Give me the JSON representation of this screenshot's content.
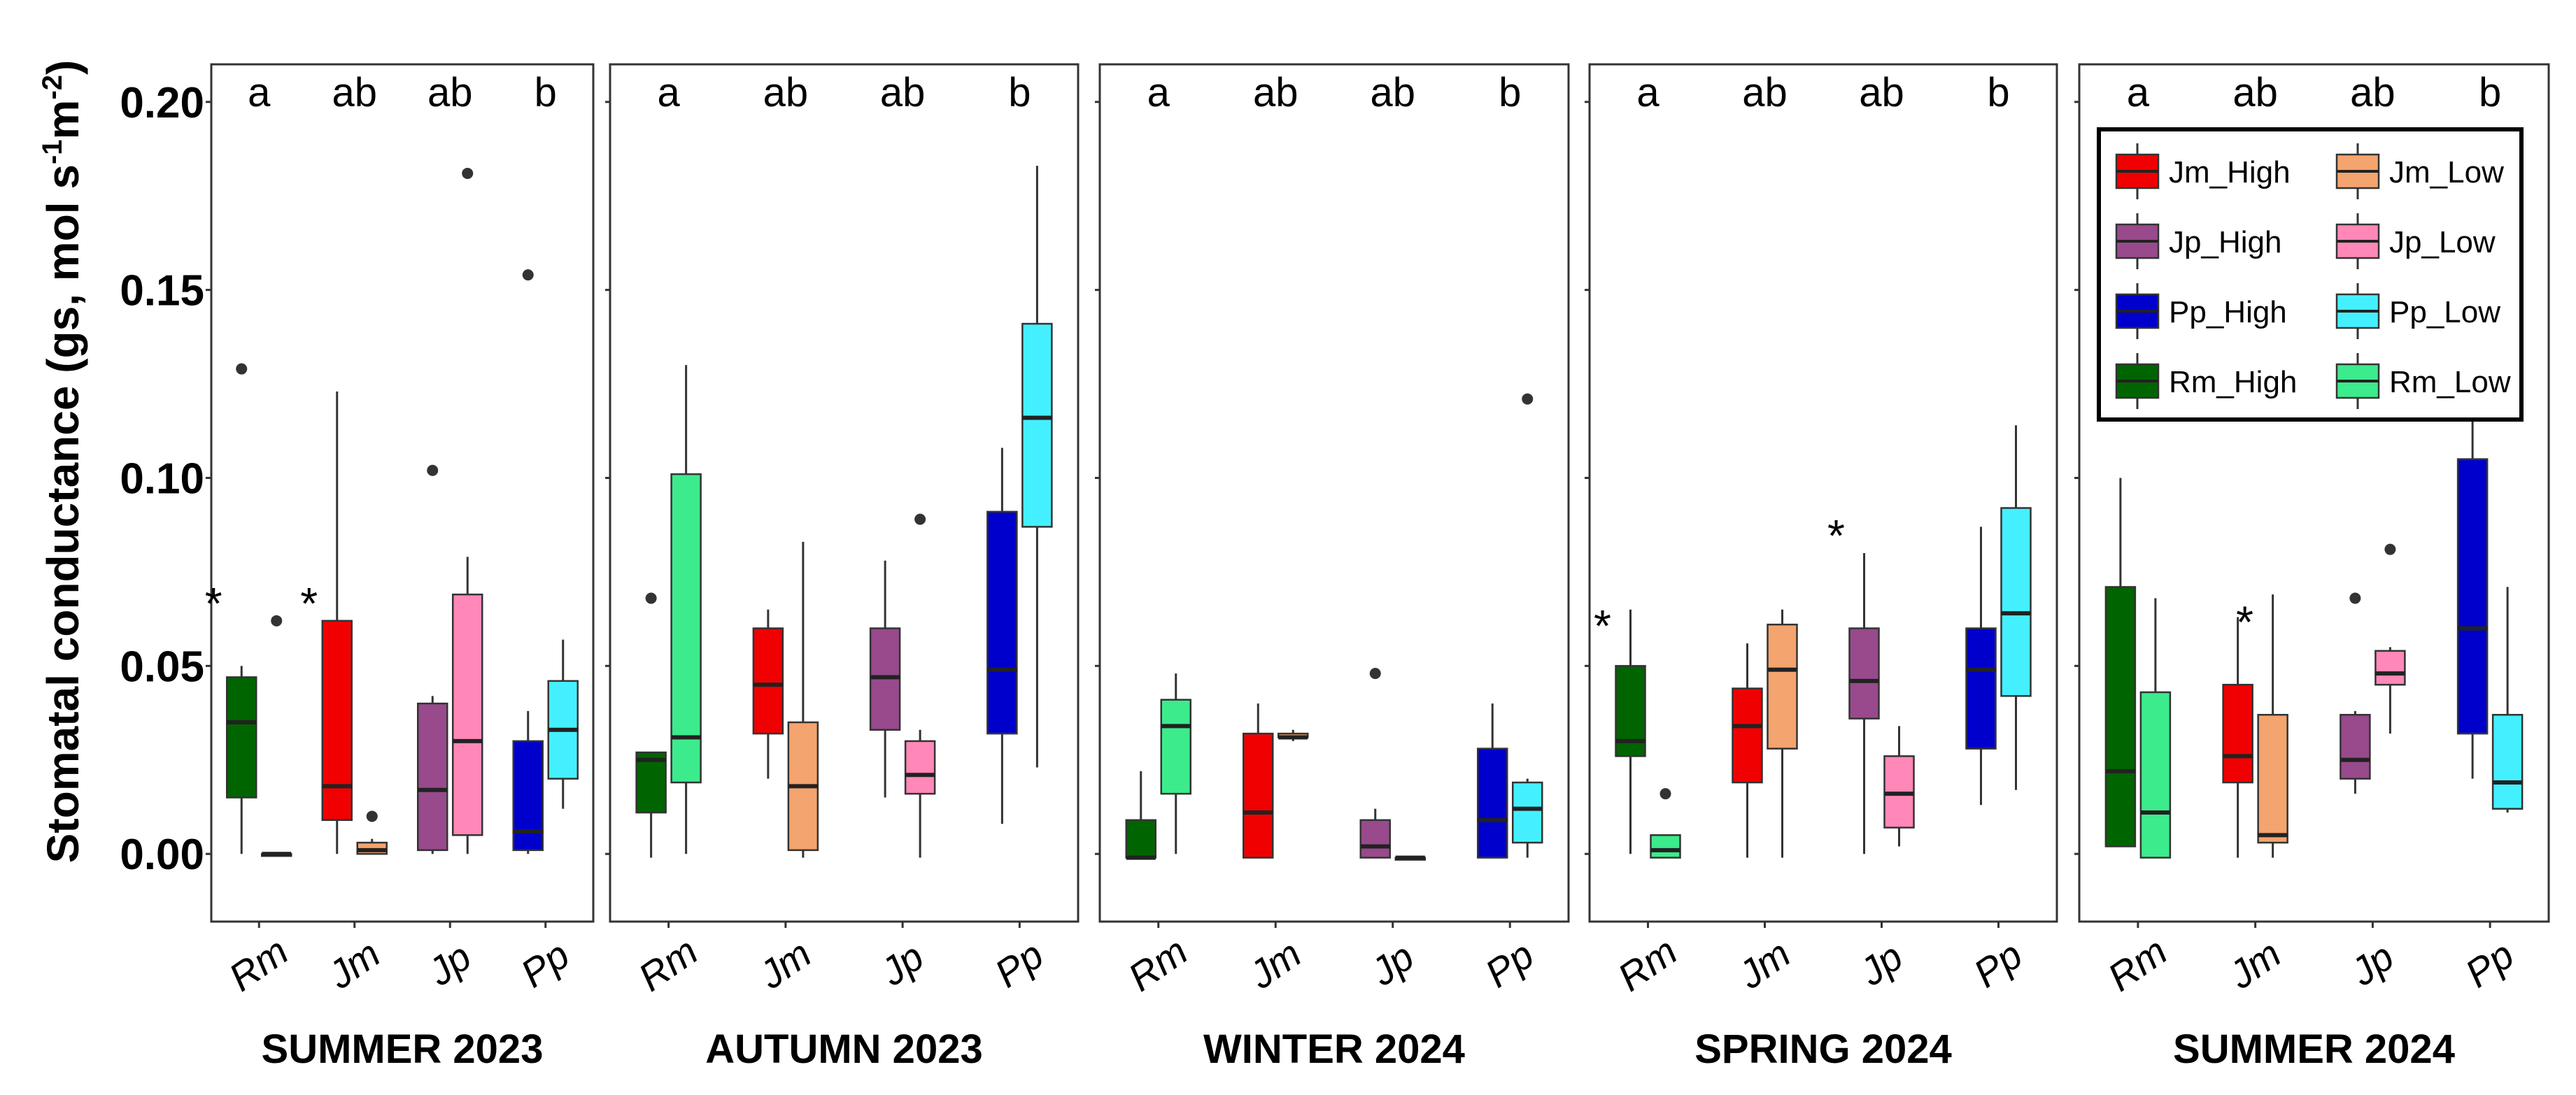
{
  "chart_data": {
    "type": "box",
    "y_axis": {
      "label": "Stomatal conductance (gs, mol s",
      "label_sup1": "-1",
      "label_mid": "m",
      "label_sup2": "-2",
      "label_end": ")",
      "ylim": [
        -0.018,
        0.21
      ],
      "ticks": [
        "0.00",
        "0.05",
        "0.10",
        "0.15",
        "0.20"
      ],
      "tick_values": [
        0,
        0.05,
        0.1,
        0.15,
        0.2
      ]
    },
    "groups": [
      "Rm",
      "Jm",
      "Jp",
      "Pp"
    ],
    "colors": {
      "Rm_High": "#006400",
      "Rm_Low": "#3CEB8C",
      "Jm_High": "#F00000",
      "Jm_Low": "#F4A46E",
      "Jp_High": "#984A8C",
      "Jp_Low": "#FF88B8",
      "Pp_High": "#0000CD",
      "Pp_Low": "#44F0FF"
    },
    "legend": [
      {
        "key": "Jm_High",
        "label": "Jm_High"
      },
      {
        "key": "Jm_Low",
        "label": "Jm_Low"
      },
      {
        "key": "Jp_High",
        "label": "Jp_High"
      },
      {
        "key": "Jp_Low",
        "label": "Jp_Low"
      },
      {
        "key": "Pp_High",
        "label": "Pp_High"
      },
      {
        "key": "Pp_Low",
        "label": "Pp_Low"
      },
      {
        "key": "Rm_High",
        "label": "Rm_High"
      },
      {
        "key": "Rm_Low",
        "label": "Rm_Low"
      }
    ],
    "panels": [
      {
        "season": "SUMMER 2023",
        "letters": [
          "a",
          "ab",
          "ab",
          "b"
        ],
        "boxes": [
          {
            "key": "Rm_High",
            "min": 0.0,
            "q1": 0.015,
            "med": 0.035,
            "q3": 0.047,
            "max": 0.05,
            "out": [
              0.129
            ]
          },
          {
            "key": "Rm_Low",
            "min": 0.0,
            "q1": 0.0,
            "med": 0.0,
            "q3": 0.0,
            "max": 0.0,
            "out": [
              0.062
            ]
          },
          {
            "key": "Jm_High",
            "min": 0.0,
            "q1": 0.009,
            "med": 0.018,
            "q3": 0.062,
            "max": 0.123,
            "out": []
          },
          {
            "key": "Jm_Low",
            "min": 0.0,
            "q1": 0.0,
            "med": 0.001,
            "q3": 0.003,
            "max": 0.004,
            "out": [
              0.01
            ]
          },
          {
            "key": "Jp_High",
            "min": 0.0,
            "q1": 0.001,
            "med": 0.017,
            "q3": 0.04,
            "max": 0.042,
            "out": [
              0.102
            ]
          },
          {
            "key": "Jp_Low",
            "min": 0.0,
            "q1": 0.005,
            "med": 0.03,
            "q3": 0.069,
            "max": 0.079,
            "out": [
              0.181
            ]
          },
          {
            "key": "Pp_High",
            "min": 0.0,
            "q1": 0.001,
            "med": 0.006,
            "q3": 0.03,
            "max": 0.038,
            "out": [
              0.154
            ]
          },
          {
            "key": "Pp_Low",
            "min": 0.012,
            "q1": 0.02,
            "med": 0.033,
            "q3": 0.046,
            "max": 0.057,
            "out": []
          }
        ],
        "asterisks": [
          {
            "box": 0,
            "value": 0.07
          },
          {
            "box": 2,
            "value": 0.07
          }
        ]
      },
      {
        "season": "AUTUMN 2023",
        "letters": [
          "a",
          "ab",
          "ab",
          "b"
        ],
        "boxes": [
          {
            "key": "Rm_High",
            "min": -0.001,
            "q1": 0.011,
            "med": 0.025,
            "q3": 0.027,
            "max": 0.027,
            "out": [
              0.068
            ]
          },
          {
            "key": "Rm_Low",
            "min": 0.0,
            "q1": 0.019,
            "med": 0.031,
            "q3": 0.101,
            "max": 0.13,
            "out": []
          },
          {
            "key": "Jm_High",
            "min": 0.02,
            "q1": 0.032,
            "med": 0.045,
            "q3": 0.06,
            "max": 0.065,
            "out": []
          },
          {
            "key": "Jm_Low",
            "min": -0.001,
            "q1": 0.001,
            "med": 0.018,
            "q3": 0.035,
            "max": 0.083,
            "out": []
          },
          {
            "key": "Jp_High",
            "min": 0.015,
            "q1": 0.033,
            "med": 0.047,
            "q3": 0.06,
            "max": 0.078,
            "out": []
          },
          {
            "key": "Jp_Low",
            "min": -0.001,
            "q1": 0.016,
            "med": 0.021,
            "q3": 0.03,
            "max": 0.033,
            "out": [
              0.089
            ]
          },
          {
            "key": "Pp_High",
            "min": 0.008,
            "q1": 0.032,
            "med": 0.049,
            "q3": 0.091,
            "max": 0.108,
            "out": []
          },
          {
            "key": "Pp_Low",
            "min": 0.023,
            "q1": 0.087,
            "med": 0.116,
            "q3": 0.141,
            "max": 0.183,
            "out": []
          }
        ],
        "asterisks": []
      },
      {
        "season": "WINTER 2024",
        "letters": [
          "a",
          "ab",
          "ab",
          "b"
        ],
        "boxes": [
          {
            "key": "Rm_High",
            "min": -0.001,
            "q1": -0.001,
            "med": -0.001,
            "q3": 0.009,
            "max": 0.022,
            "out": []
          },
          {
            "key": "Rm_Low",
            "min": 0.0,
            "q1": 0.016,
            "med": 0.034,
            "q3": 0.041,
            "max": 0.048,
            "out": []
          },
          {
            "key": "Jm_High",
            "min": -0.001,
            "q1": -0.001,
            "med": 0.011,
            "q3": 0.032,
            "max": 0.04,
            "out": []
          },
          {
            "key": "Jm_Low",
            "min": 0.03,
            "q1": 0.031,
            "med": 0.031,
            "q3": 0.032,
            "max": 0.033,
            "out": []
          },
          {
            "key": "Jp_High",
            "min": -0.001,
            "q1": -0.001,
            "med": 0.002,
            "q3": 0.009,
            "max": 0.012,
            "out": [
              0.048
            ]
          },
          {
            "key": "Jp_Low",
            "min": -0.001,
            "q1": -0.001,
            "med": -0.001,
            "q3": -0.001,
            "max": -0.001,
            "out": []
          },
          {
            "key": "Pp_High",
            "min": -0.001,
            "q1": -0.001,
            "med": 0.009,
            "q3": 0.028,
            "max": 0.04,
            "out": []
          },
          {
            "key": "Pp_Low",
            "min": -0.001,
            "q1": 0.003,
            "med": 0.012,
            "q3": 0.019,
            "max": 0.02,
            "out": [
              0.121
            ]
          }
        ],
        "asterisks": []
      },
      {
        "season": "SPRING 2024",
        "letters": [
          "a",
          "ab",
          "ab",
          "b"
        ],
        "boxes": [
          {
            "key": "Rm_High",
            "min": 0.0,
            "q1": 0.026,
            "med": 0.03,
            "q3": 0.05,
            "max": 0.065,
            "out": []
          },
          {
            "key": "Rm_Low",
            "min": -0.001,
            "q1": -0.001,
            "med": 0.001,
            "q3": 0.005,
            "max": 0.005,
            "out": [
              0.016
            ]
          },
          {
            "key": "Jm_High",
            "min": -0.001,
            "q1": 0.019,
            "med": 0.034,
            "q3": 0.044,
            "max": 0.056,
            "out": []
          },
          {
            "key": "Jm_Low",
            "min": -0.001,
            "q1": 0.028,
            "med": 0.049,
            "q3": 0.061,
            "max": 0.065,
            "out": []
          },
          {
            "key": "Jp_High",
            "min": 0.0,
            "q1": 0.036,
            "med": 0.046,
            "q3": 0.06,
            "max": 0.08,
            "out": []
          },
          {
            "key": "Jp_Low",
            "min": 0.002,
            "q1": 0.007,
            "med": 0.016,
            "q3": 0.026,
            "max": 0.034,
            "out": []
          },
          {
            "key": "Pp_High",
            "min": 0.013,
            "q1": 0.028,
            "med": 0.049,
            "q3": 0.06,
            "max": 0.087,
            "out": []
          },
          {
            "key": "Pp_Low",
            "min": 0.017,
            "q1": 0.042,
            "med": 0.064,
            "q3": 0.092,
            "max": 0.114,
            "out": []
          }
        ],
        "asterisks": [
          {
            "box": 0,
            "value": 0.064
          },
          {
            "box": 4,
            "value": 0.088
          }
        ]
      },
      {
        "season": "SUMMER 2024",
        "letters": [
          "a",
          "ab",
          "ab",
          "b"
        ],
        "boxes": [
          {
            "key": "Rm_High",
            "min": 0.002,
            "q1": 0.002,
            "med": 0.022,
            "q3": 0.071,
            "max": 0.1,
            "out": []
          },
          {
            "key": "Rm_Low",
            "min": -0.001,
            "q1": -0.001,
            "med": 0.011,
            "q3": 0.043,
            "max": 0.068,
            "out": []
          },
          {
            "key": "Jm_High",
            "min": -0.001,
            "q1": 0.019,
            "med": 0.026,
            "q3": 0.045,
            "max": 0.063,
            "out": []
          },
          {
            "key": "Jm_Low",
            "min": -0.001,
            "q1": 0.003,
            "med": 0.005,
            "q3": 0.037,
            "max": 0.069,
            "out": []
          },
          {
            "key": "Jp_High",
            "min": 0.016,
            "q1": 0.02,
            "med": 0.025,
            "q3": 0.037,
            "max": 0.038,
            "out": [
              0.068
            ]
          },
          {
            "key": "Jp_Low",
            "min": 0.032,
            "q1": 0.045,
            "med": 0.048,
            "q3": 0.054,
            "max": 0.055,
            "out": [
              0.081
            ]
          },
          {
            "key": "Pp_High",
            "min": 0.02,
            "q1": 0.032,
            "med": 0.06,
            "q3": 0.105,
            "max": 0.116,
            "out": []
          },
          {
            "key": "Pp_Low",
            "min": 0.011,
            "q1": 0.012,
            "med": 0.019,
            "q3": 0.037,
            "max": 0.071,
            "out": []
          }
        ],
        "asterisks": [
          {
            "box": 3,
            "value": 0.065
          }
        ]
      }
    ]
  }
}
